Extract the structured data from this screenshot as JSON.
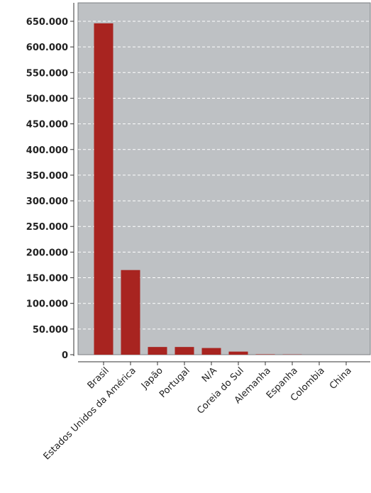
{
  "chart_data": {
    "type": "bar",
    "categories": [
      "Brasil",
      "Estados Unidos da América",
      "Japão",
      "Portugal",
      "N/A",
      "Coreia do Sul",
      "Alemanha",
      "Espanha",
      "Colombia",
      "China"
    ],
    "values": [
      646000,
      165000,
      15000,
      15000,
      13000,
      6000,
      800,
      500,
      400,
      300
    ],
    "ylim": [
      0,
      650000
    ],
    "yticks": [
      0,
      50000,
      100000,
      150000,
      200000,
      250000,
      300000,
      350000,
      400000,
      450000,
      500000,
      550000,
      600000,
      650000
    ],
    "ytick_labels": [
      "0",
      "50.000",
      "100.000",
      "150.000",
      "200.000",
      "250.000",
      "300.000",
      "350.000",
      "400.000",
      "450.000",
      "500.000",
      "550.000",
      "600.000",
      "650.000"
    ],
    "grid": true,
    "colors": {
      "bar": "#a82420",
      "plot_background": "#bec1c4",
      "grid": "#ffffff"
    }
  }
}
